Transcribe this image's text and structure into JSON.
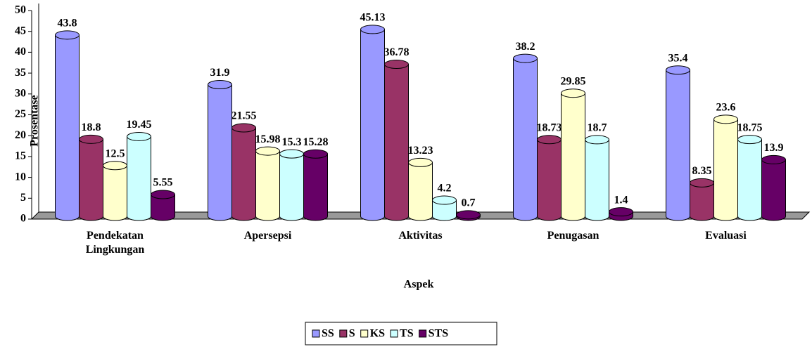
{
  "chart_data": {
    "type": "bar",
    "y_label": "Prosentase",
    "x_label": "Aspek",
    "categories": [
      "Pendekatan Lingkungan",
      "Apersepsi",
      "Aktivitas",
      "Penugasan",
      "Evaluasi"
    ],
    "series": [
      {
        "name": "SS",
        "color": "#9999ff",
        "values": [
          43.8,
          31.9,
          45.13,
          38.2,
          35.4
        ]
      },
      {
        "name": "S",
        "color": "#993366",
        "values": [
          18.8,
          21.55,
          36.78,
          18.73,
          8.35
        ]
      },
      {
        "name": "KS",
        "color": "#ffffcc",
        "values": [
          12.5,
          15.98,
          13.23,
          29.85,
          23.6
        ]
      },
      {
        "name": "TS",
        "color": "#ccffff",
        "values": [
          19.45,
          15.3,
          4.2,
          18.7,
          18.75
        ]
      },
      {
        "name": "STS",
        "color": "#660066",
        "values": [
          5.55,
          15.28,
          0.7,
          1.4,
          13.9
        ]
      }
    ],
    "ylim": [
      0,
      50
    ],
    "yticks": [
      0,
      5,
      10,
      15,
      20,
      25,
      30,
      35,
      40,
      45,
      50
    ]
  }
}
